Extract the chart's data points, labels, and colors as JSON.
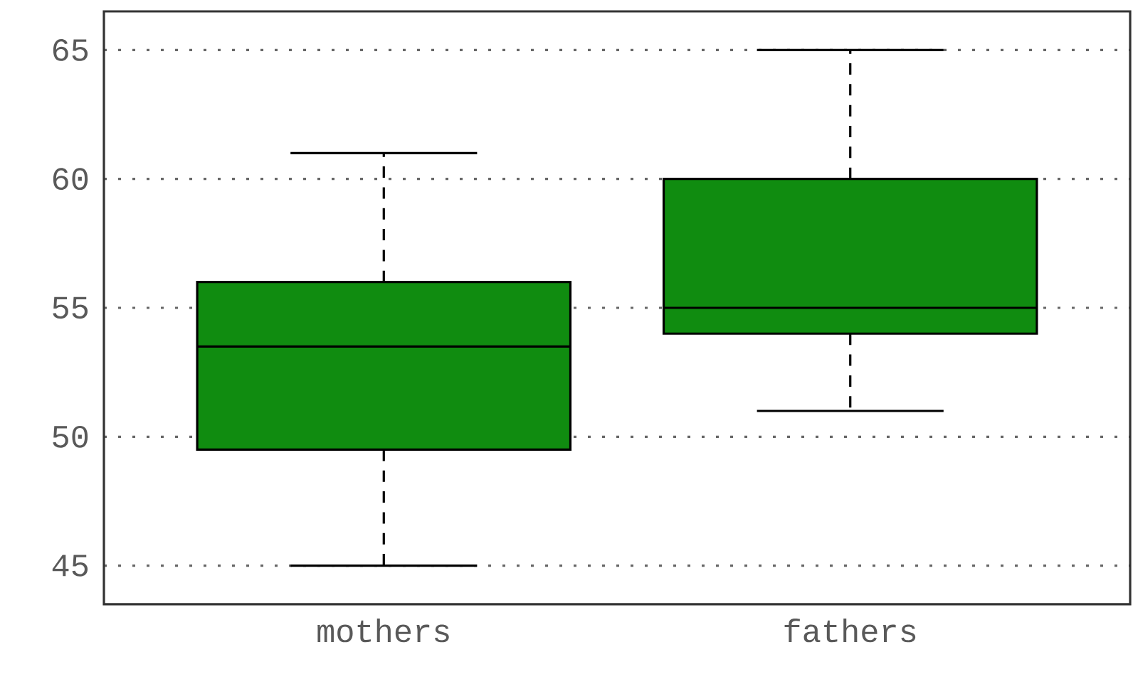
{
  "chart_data": {
    "type": "box",
    "categories": [
      "mothers",
      "fathers"
    ],
    "color": "#108c10",
    "boxes": [
      {
        "low": 45,
        "q1": 49.5,
        "median": 53.5,
        "q3": 56,
        "high": 61
      },
      {
        "low": 51,
        "q1": 54,
        "median": 55,
        "q3": 60,
        "high": 65
      }
    ],
    "ylim": [
      43.5,
      66.5
    ],
    "yticks": [
      45,
      50,
      55,
      60,
      65
    ],
    "grid": "y"
  }
}
